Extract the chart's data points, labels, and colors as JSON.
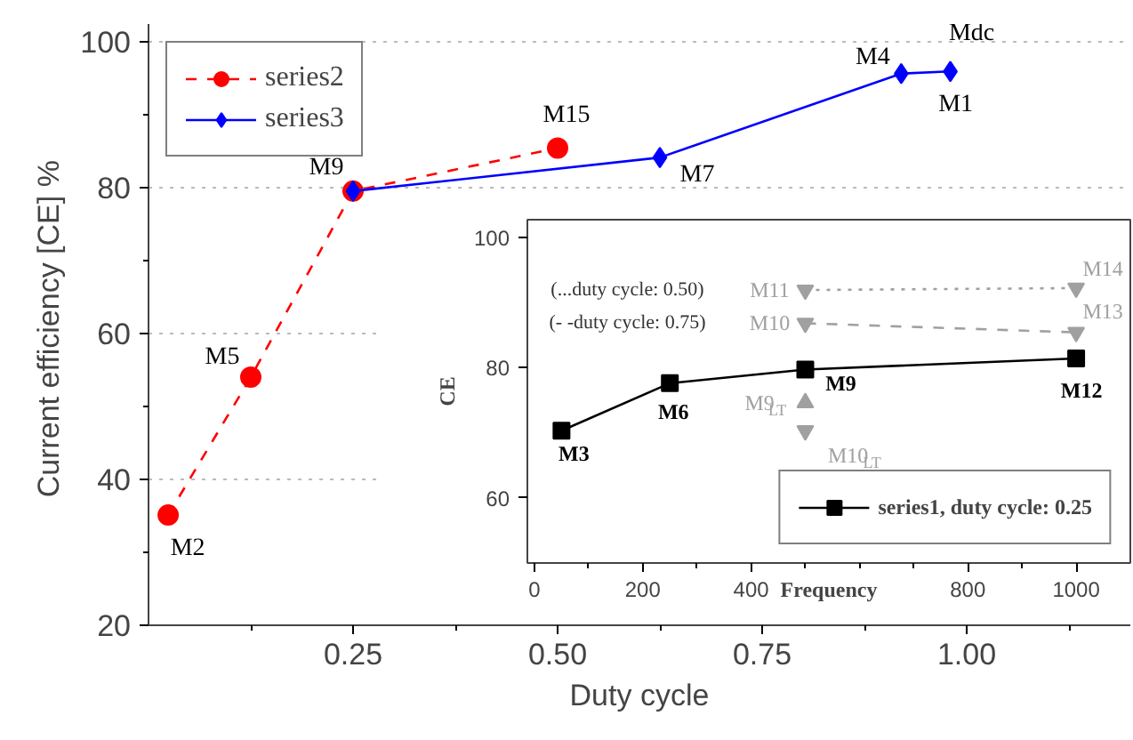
{
  "chart_data": [
    {
      "type": "line",
      "xlabel": "Duty cycle",
      "ylabel": "Current efficiency [CE]  %",
      "xlim": [
        0,
        1.2
      ],
      "ylim": [
        20,
        102.4
      ],
      "xticks": [
        {
          "value": 0.125,
          "label": null
        },
        0.25,
        {
          "value": 0.375,
          "label": null
        },
        {
          "value": 0.5,
          "label": "0.50"
        },
        {
          "value": 0.625,
          "label": null
        },
        0.75,
        {
          "value": 0.875,
          "label": null
        },
        {
          "value": 1.0,
          "label": "1.00"
        },
        {
          "value": 1.125,
          "label": null
        }
      ],
      "yticks": [
        20,
        {
          "value": 30,
          "label": null
        },
        40,
        {
          "value": 50,
          "label": null
        },
        60,
        {
          "value": 70,
          "label": null
        },
        80,
        {
          "value": 90,
          "label": null
        },
        100
      ],
      "grid": "y",
      "legend": "top left",
      "series": [
        {
          "name": "series2",
          "color": "#ff0000",
          "marker": "circle",
          "line_style": "dashed",
          "x": [
            0.024,
            0.125,
            0.25,
            0.5
          ],
          "values": [
            35.1,
            54,
            79.5,
            85.4
          ]
        },
        {
          "name": "series3",
          "color": "#0000ff",
          "marker": "diamond",
          "line_style": "solid",
          "x": [
            0.25,
            0.625,
            0.92,
            0.98
          ],
          "values": [
            79.5,
            84.1,
            95.6,
            95.9
          ]
        }
      ],
      "annotations": [
        {
          "text": "M2",
          "x": 0.024,
          "y": 35.1
        },
        {
          "text": "M5",
          "x": 0.125,
          "y": 54
        },
        {
          "text": "M9",
          "x": 0.25,
          "y": 79.5
        },
        {
          "text": "M15",
          "x": 0.5,
          "y": 85.4
        },
        {
          "text": "M7",
          "x": 0.625,
          "y": 84.1
        },
        {
          "text": "M4",
          "x": 0.92,
          "y": 95.6
        },
        {
          "text": "Mdc",
          "x": 0.98,
          "y": 95.9
        },
        {
          "text": "M1",
          "x": 0.98,
          "y": 95.9
        }
      ]
    },
    {
      "type": "line",
      "xlabel": "Frequency",
      "ylabel": "CE",
      "xlim": [
        -13,
        1100
      ],
      "ylim": [
        50,
        102.7
      ],
      "xticks": [
        0,
        {
          "value": 100,
          "label": null
        },
        200,
        {
          "value": 300,
          "label": null
        },
        400,
        {
          "value": 500,
          "label": null
        },
        {
          "value": 600,
          "label": null
        },
        {
          "value": 700,
          "label": null
        },
        800,
        {
          "value": 900,
          "label": null
        },
        1000
      ],
      "yticks": [
        60,
        80,
        100
      ],
      "grid": false,
      "legend": "bottom right",
      "series": [
        {
          "name": "series1, duty cycle: 0.25",
          "color": "#000000",
          "marker": "square",
          "line_style": "solid",
          "x": [
            50,
            250,
            500,
            1000
          ],
          "values": [
            70.3,
            77.6,
            79.7,
            81.4
          ]
        },
        {
          "color": "#a0a0a0",
          "marker": "triangle_down",
          "line_style": "dotted",
          "x": [
            500,
            1000
          ],
          "values": [
            91.9,
            92.2
          ]
        },
        {
          "color": "#a0a0a0",
          "marker": "triangle_down",
          "line_style": "dashed",
          "x": [
            500,
            1000
          ],
          "values": [
            86.8,
            85.4
          ]
        },
        {
          "color": "#a0a0a0",
          "marker": "triangle",
          "line_style": "none",
          "x": [
            500
          ],
          "values": [
            74.6
          ]
        },
        {
          "color": "#a0a0a0",
          "marker": "triangle_down",
          "line_style": "none",
          "x": [
            500
          ],
          "values": [
            70.3
          ]
        }
      ],
      "annotations": [
        "(...duty cycle: 0.50)",
        "(- -duty cycle: 0.75)",
        {
          "text": "M11",
          "x": 500,
          "y": 91.9
        },
        {
          "text": "M10",
          "x": 500,
          "y": 86.8
        },
        {
          "text": "M14",
          "x": 1000,
          "y": 92.2
        },
        {
          "text": "M13",
          "x": 1000,
          "y": 85.4
        },
        {
          "text": "M3",
          "x": 50,
          "y": 70.3
        },
        {
          "text": "M6",
          "x": 250,
          "y": 77.6
        },
        {
          "text": "M9",
          "x": 500,
          "y": 79.7
        },
        {
          "text": "M12",
          "x": 1000,
          "y": 81.4
        },
        {
          "text": "M9$_{LT}$",
          "x": 500,
          "y": 74.6
        },
        {
          "text": "M10$_{LT}$",
          "x": 500,
          "y": 70.3
        }
      ]
    }
  ]
}
